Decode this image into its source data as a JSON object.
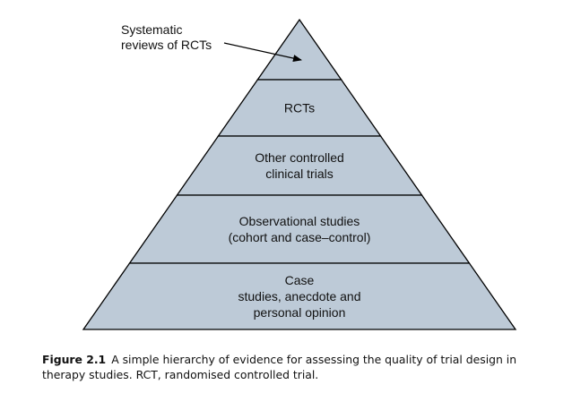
{
  "diagram": {
    "fill_color": "#bdcad7",
    "stroke_color": "#000000",
    "callout": {
      "lines": [
        "Systematic",
        "reviews of RCTs"
      ]
    },
    "levels": [
      {
        "lines": []
      },
      {
        "lines": [
          "RCTs"
        ]
      },
      {
        "lines": [
          "Other controlled",
          "clinical trials"
        ]
      },
      {
        "lines": [
          "Observational studies",
          "(cohort and case–control)"
        ]
      },
      {
        "lines": [
          "Case",
          "studies, anecdote and",
          "personal opinion"
        ]
      }
    ]
  },
  "caption": {
    "label": "Figure 2.1",
    "text": "A simple hierarchy of evidence for assessing the quality of trial design in therapy studies. RCT, randomised controlled trial."
  }
}
